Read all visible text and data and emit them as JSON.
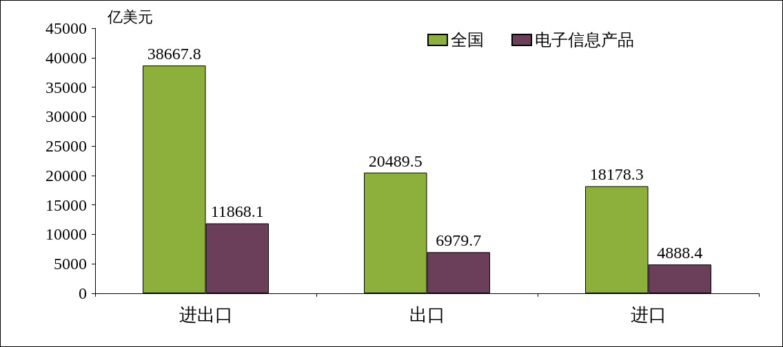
{
  "chart_data": {
    "type": "bar",
    "ylabel": "亿美元",
    "categories": [
      "进出口",
      "出口",
      "进口"
    ],
    "series": [
      {
        "name": "全国",
        "color": "#8db03c",
        "values": [
          38667.8,
          20489.5,
          18178.3
        ]
      },
      {
        "name": "电子信息产品",
        "color": "#6b3f5a",
        "values": [
          11868.1,
          6979.7,
          4888.4
        ]
      }
    ],
    "ylim": [
      0,
      45000
    ],
    "yticks": [
      0,
      5000,
      10000,
      15000,
      20000,
      25000,
      30000,
      35000,
      40000,
      45000
    ],
    "data_labels": true,
    "grid": false,
    "legend": "top right"
  }
}
